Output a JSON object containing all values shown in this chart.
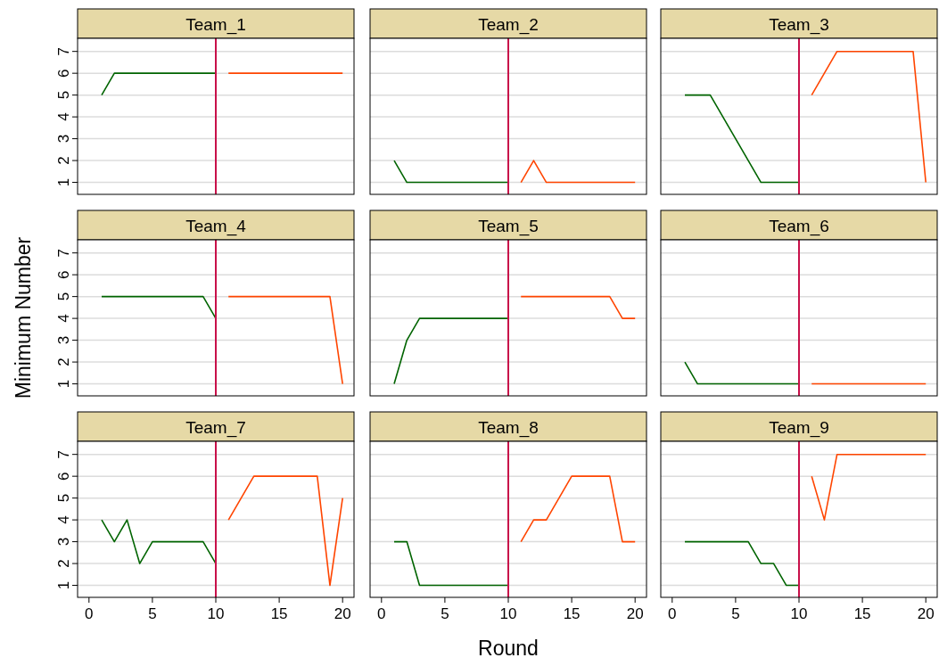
{
  "chart_data": [
    {
      "type": "line",
      "title": "Team_1",
      "xlim": [
        -0.9,
        20.9
      ],
      "ylim": [
        0.45,
        7.6
      ],
      "yticks": [
        1,
        2,
        3,
        4,
        5,
        6,
        7
      ],
      "grid": "y",
      "tick_labels": "y",
      "ref_lines": [
        {
          "axis": "x",
          "value": 10,
          "color": "#c8104a"
        }
      ],
      "series": [
        {
          "color": "#006400",
          "x": [
            1,
            2,
            3,
            4,
            5,
            6,
            7,
            8,
            9,
            10
          ],
          "values": [
            5,
            6,
            6,
            6,
            6,
            6,
            6,
            6,
            6,
            6
          ]
        },
        {
          "color": "#ff4500",
          "x": [
            11,
            12,
            13,
            14,
            15,
            16,
            17,
            18,
            19,
            20
          ],
          "values": [
            6,
            6,
            6,
            6,
            6,
            6,
            6,
            6,
            6,
            6
          ]
        }
      ]
    },
    {
      "type": "line",
      "title": "Team_2",
      "xlim": [
        -0.9,
        20.9
      ],
      "ylim": [
        0.45,
        7.6
      ],
      "yticks": [
        1,
        2,
        3,
        4,
        5,
        6,
        7
      ],
      "grid": "y",
      "tick_labels": false,
      "ref_lines": [
        {
          "axis": "x",
          "value": 10,
          "color": "#c8104a"
        }
      ],
      "series": [
        {
          "color": "#006400",
          "x": [
            1,
            2,
            3,
            4,
            5,
            6,
            7,
            8,
            9,
            10
          ],
          "values": [
            2,
            1,
            1,
            1,
            1,
            1,
            1,
            1,
            1,
            1
          ]
        },
        {
          "color": "#ff4500",
          "x": [
            11,
            12,
            13,
            14,
            15,
            16,
            17,
            18,
            19,
            20
          ],
          "values": [
            1,
            2,
            1,
            1,
            1,
            1,
            1,
            1,
            1,
            1
          ]
        }
      ]
    },
    {
      "type": "line",
      "title": "Team_3",
      "xlim": [
        -0.9,
        20.9
      ],
      "ylim": [
        0.45,
        7.6
      ],
      "yticks": [
        1,
        2,
        3,
        4,
        5,
        6,
        7
      ],
      "grid": "y",
      "tick_labels": false,
      "ref_lines": [
        {
          "axis": "x",
          "value": 10,
          "color": "#c8104a"
        }
      ],
      "series": [
        {
          "color": "#006400",
          "x": [
            1,
            2,
            3,
            4,
            5,
            6,
            7,
            8,
            9,
            10
          ],
          "values": [
            5,
            5,
            5,
            4,
            3,
            2,
            1,
            1,
            1,
            1
          ]
        },
        {
          "color": "#ff4500",
          "x": [
            11,
            12,
            13,
            14,
            15,
            16,
            17,
            18,
            19,
            20
          ],
          "values": [
            5,
            6,
            7,
            7,
            7,
            7,
            7,
            7,
            7,
            1
          ]
        }
      ]
    },
    {
      "type": "line",
      "title": "Team_4",
      "ylabel": "Minimum Number",
      "xlim": [
        -0.9,
        20.9
      ],
      "ylim": [
        0.45,
        7.6
      ],
      "yticks": [
        1,
        2,
        3,
        4,
        5,
        6,
        7
      ],
      "grid": "y",
      "tick_labels": "y",
      "ref_lines": [
        {
          "axis": "x",
          "value": 10,
          "color": "#c8104a"
        }
      ],
      "series": [
        {
          "color": "#006400",
          "x": [
            1,
            2,
            3,
            4,
            5,
            6,
            7,
            8,
            9,
            10
          ],
          "values": [
            5,
            5,
            5,
            5,
            5,
            5,
            5,
            5,
            5,
            4
          ]
        },
        {
          "color": "#ff4500",
          "x": [
            11,
            12,
            13,
            14,
            15,
            16,
            17,
            18,
            19,
            20
          ],
          "values": [
            5,
            5,
            5,
            5,
            5,
            5,
            5,
            5,
            5,
            1
          ]
        }
      ]
    },
    {
      "type": "line",
      "title": "Team_5",
      "xlim": [
        -0.9,
        20.9
      ],
      "ylim": [
        0.45,
        7.6
      ],
      "yticks": [
        1,
        2,
        3,
        4,
        5,
        6,
        7
      ],
      "grid": "y",
      "tick_labels": false,
      "ref_lines": [
        {
          "axis": "x",
          "value": 10,
          "color": "#c8104a"
        }
      ],
      "series": [
        {
          "color": "#006400",
          "x": [
            1,
            2,
            3,
            4,
            5,
            6,
            7,
            8,
            9,
            10
          ],
          "values": [
            1,
            3,
            4,
            4,
            4,
            4,
            4,
            4,
            4,
            4
          ]
        },
        {
          "color": "#ff4500",
          "x": [
            11,
            12,
            13,
            14,
            15,
            16,
            17,
            18,
            19,
            20
          ],
          "values": [
            5,
            5,
            5,
            5,
            5,
            5,
            5,
            5,
            4,
            4
          ]
        }
      ]
    },
    {
      "type": "line",
      "title": "Team_6",
      "xlim": [
        -0.9,
        20.9
      ],
      "ylim": [
        0.45,
        7.6
      ],
      "yticks": [
        1,
        2,
        3,
        4,
        5,
        6,
        7
      ],
      "grid": "y",
      "tick_labels": false,
      "ref_lines": [
        {
          "axis": "x",
          "value": 10,
          "color": "#c8104a"
        }
      ],
      "series": [
        {
          "color": "#006400",
          "x": [
            1,
            2,
            3,
            4,
            5,
            6,
            7,
            8,
            9,
            10
          ],
          "values": [
            2,
            1,
            1,
            1,
            1,
            1,
            1,
            1,
            1,
            1
          ]
        },
        {
          "color": "#ff4500",
          "x": [
            11,
            12,
            13,
            14,
            15,
            16,
            17,
            18,
            19,
            20
          ],
          "values": [
            1,
            1,
            1,
            1,
            1,
            1,
            1,
            1,
            1,
            1
          ]
        }
      ]
    },
    {
      "type": "line",
      "title": "Team_7",
      "xlim": [
        -0.9,
        20.9
      ],
      "xticks": [
        0,
        5,
        10,
        15,
        20
      ],
      "ylim": [
        0.45,
        7.6
      ],
      "yticks": [
        1,
        2,
        3,
        4,
        5,
        6,
        7
      ],
      "grid": "y",
      "ref_lines": [
        {
          "axis": "x",
          "value": 10,
          "color": "#c8104a"
        }
      ],
      "series": [
        {
          "color": "#006400",
          "x": [
            1,
            2,
            3,
            4,
            5,
            6,
            7,
            8,
            9,
            10
          ],
          "values": [
            4,
            3,
            4,
            2,
            3,
            3,
            3,
            3,
            3,
            2
          ]
        },
        {
          "color": "#ff4500",
          "x": [
            11,
            12,
            13,
            14,
            15,
            16,
            17,
            18,
            19,
            20
          ],
          "values": [
            4,
            5,
            6,
            6,
            6,
            6,
            6,
            6,
            1,
            5
          ]
        }
      ]
    },
    {
      "type": "line",
      "title": "Team_8",
      "xlabel": "Round",
      "xlim": [
        -0.9,
        20.9
      ],
      "xticks": [
        0,
        5,
        10,
        15,
        20
      ],
      "ylim": [
        0.45,
        7.6
      ],
      "yticks": [
        1,
        2,
        3,
        4,
        5,
        6,
        7
      ],
      "grid": "y",
      "tick_labels": "x",
      "ref_lines": [
        {
          "axis": "x",
          "value": 10,
          "color": "#c8104a"
        }
      ],
      "series": [
        {
          "color": "#006400",
          "x": [
            1,
            2,
            3,
            4,
            5,
            6,
            7,
            8,
            9,
            10
          ],
          "values": [
            3,
            3,
            1,
            1,
            1,
            1,
            1,
            1,
            1,
            1
          ]
        },
        {
          "color": "#ff4500",
          "x": [
            11,
            12,
            13,
            14,
            15,
            16,
            17,
            18,
            19,
            20
          ],
          "values": [
            3,
            4,
            4,
            5,
            6,
            6,
            6,
            6,
            3,
            3
          ]
        }
      ]
    },
    {
      "type": "line",
      "title": "Team_9",
      "xlim": [
        -0.9,
        20.9
      ],
      "xticks": [
        0,
        5,
        10,
        15,
        20
      ],
      "ylim": [
        0.45,
        7.6
      ],
      "yticks": [
        1,
        2,
        3,
        4,
        5,
        6,
        7
      ],
      "grid": "y",
      "tick_labels": "x",
      "ref_lines": [
        {
          "axis": "x",
          "value": 10,
          "color": "#c8104a"
        }
      ],
      "series": [
        {
          "color": "#006400",
          "x": [
            1,
            2,
            3,
            4,
            5,
            6,
            7,
            8,
            9,
            10
          ],
          "values": [
            3,
            3,
            3,
            3,
            3,
            3,
            2,
            2,
            1,
            1
          ]
        },
        {
          "color": "#ff4500",
          "x": [
            11,
            12,
            13,
            14,
            15,
            16,
            17,
            18,
            19,
            20
          ],
          "values": [
            6,
            4,
            7,
            7,
            7,
            7,
            7,
            7,
            7,
            7
          ]
        }
      ]
    }
  ]
}
